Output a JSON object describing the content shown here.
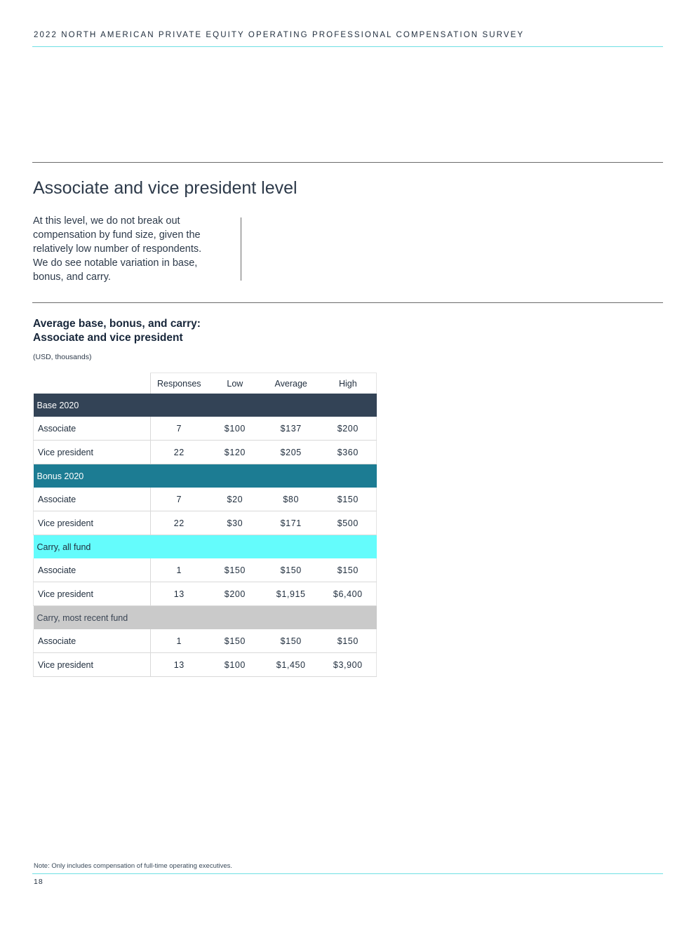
{
  "header": {
    "title": "2022 NORTH AMERICAN PRIVATE EQUITY OPERATING PROFESSIONAL COMPENSATION SURVEY"
  },
  "section": {
    "title": "Associate and vice president level",
    "intro": "At this level, we do not break out compensation by fund size, given the relatively low number of respondents. We do see notable variation in base, bonus, and carry."
  },
  "table": {
    "title_line1": "Average base, bonus, and carry:",
    "title_line2": "Associate and vice president",
    "subtitle": "(USD, thousands)",
    "columns": [
      "Responses",
      "Low",
      "Average",
      "High"
    ],
    "groups": [
      {
        "label": "Base 2020",
        "color": "#334356",
        "text_color": "#ffffff",
        "rows": [
          {
            "label": "Associate",
            "responses": "7",
            "low": "$100",
            "average": "$137",
            "high": "$200"
          },
          {
            "label": "Vice president",
            "responses": "22",
            "low": "$120",
            "average": "$205",
            "high": "$360"
          }
        ]
      },
      {
        "label": "Bonus 2020",
        "color": "#1c7c93",
        "text_color": "#ffffff",
        "rows": [
          {
            "label": "Associate",
            "responses": "7",
            "low": "$20",
            "average": "$80",
            "high": "$150"
          },
          {
            "label": "Vice president",
            "responses": "22",
            "low": "$30",
            "average": "$171",
            "high": "$500"
          }
        ]
      },
      {
        "label": "Carry, all fund",
        "color": "#64fcfc",
        "text_color": "#1f2d3d",
        "rows": [
          {
            "label": "Associate",
            "responses": "1",
            "low": "$150",
            "average": "$150",
            "high": "$150"
          },
          {
            "label": "Vice president",
            "responses": "13",
            "low": "$200",
            "average": "$1,915",
            "high": "$6,400"
          }
        ]
      },
      {
        "label": "Carry, most recent fund",
        "color": "#cacaca",
        "text_color": "#3a4554",
        "rows": [
          {
            "label": "Associate",
            "responses": "1",
            "low": "$150",
            "average": "$150",
            "high": "$150"
          },
          {
            "label": "Vice president",
            "responses": "13",
            "low": "$100",
            "average": "$1,450",
            "high": "$3,900"
          }
        ]
      }
    ]
  },
  "footer": {
    "note": "Note: Only includes compensation of full-time operating executives.",
    "page_number": "18"
  }
}
